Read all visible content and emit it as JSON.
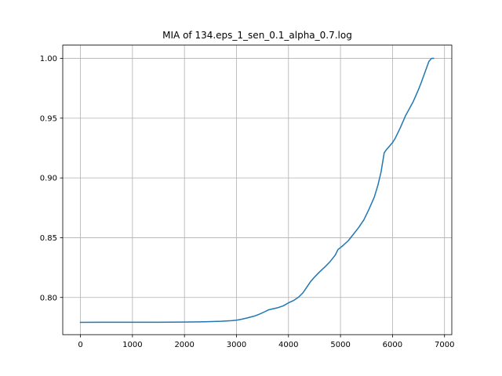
{
  "chart_data": {
    "type": "line",
    "title": "MIA of 134.eps_1_sen_0.1_alpha_0.7.log",
    "xlabel": "",
    "ylabel": "",
    "xlim": [
      -340,
      7140
    ],
    "ylim": [
      0.7689,
      1.0111
    ],
    "x_ticks": [
      0,
      1000,
      2000,
      3000,
      4000,
      5000,
      6000,
      7000
    ],
    "x_tick_labels": [
      "0",
      "1000",
      "2000",
      "3000",
      "4000",
      "5000",
      "6000",
      "7000"
    ],
    "y_ticks": [
      0.8,
      0.85,
      0.9,
      0.95,
      1.0
    ],
    "y_tick_labels": [
      "0.80",
      "0.85",
      "0.90",
      "0.95",
      "1.00"
    ],
    "grid": true,
    "legend": "none",
    "series": [
      {
        "color": "#1f77b4",
        "x": [
          0,
          500,
          1000,
          1500,
          2000,
          2400,
          2700,
          2900,
          3000,
          3100,
          3200,
          3350,
          3450,
          3550,
          3620,
          3700,
          3800,
          3900,
          4000,
          4100,
          4200,
          4280,
          4350,
          4420,
          4500,
          4600,
          4700,
          4800,
          4900,
          4950,
          5050,
          5150,
          5250,
          5350,
          5450,
          5550,
          5650,
          5720,
          5780,
          5840,
          5880,
          5920,
          5960,
          6000,
          6050,
          6100,
          6150,
          6200,
          6250,
          6300,
          6350,
          6400,
          6450,
          6500,
          6550,
          6600,
          6650,
          6700,
          6750,
          6790
        ],
        "y": [
          0.7792,
          0.7793,
          0.7793,
          0.7793,
          0.7794,
          0.7797,
          0.7801,
          0.7806,
          0.781,
          0.7818,
          0.7828,
          0.7845,
          0.7862,
          0.7882,
          0.7897,
          0.7905,
          0.7915,
          0.793,
          0.7955,
          0.7975,
          0.8005,
          0.804,
          0.8085,
          0.813,
          0.817,
          0.8215,
          0.8255,
          0.83,
          0.8355,
          0.84,
          0.8435,
          0.8475,
          0.853,
          0.8585,
          0.865,
          0.874,
          0.884,
          0.894,
          0.905,
          0.921,
          0.9235,
          0.9255,
          0.9275,
          0.9295,
          0.933,
          0.9375,
          0.942,
          0.947,
          0.952,
          0.956,
          0.96,
          0.964,
          0.969,
          0.974,
          0.9795,
          0.9855,
          0.9915,
          0.9975,
          1.0,
          1.0
        ]
      }
    ]
  }
}
